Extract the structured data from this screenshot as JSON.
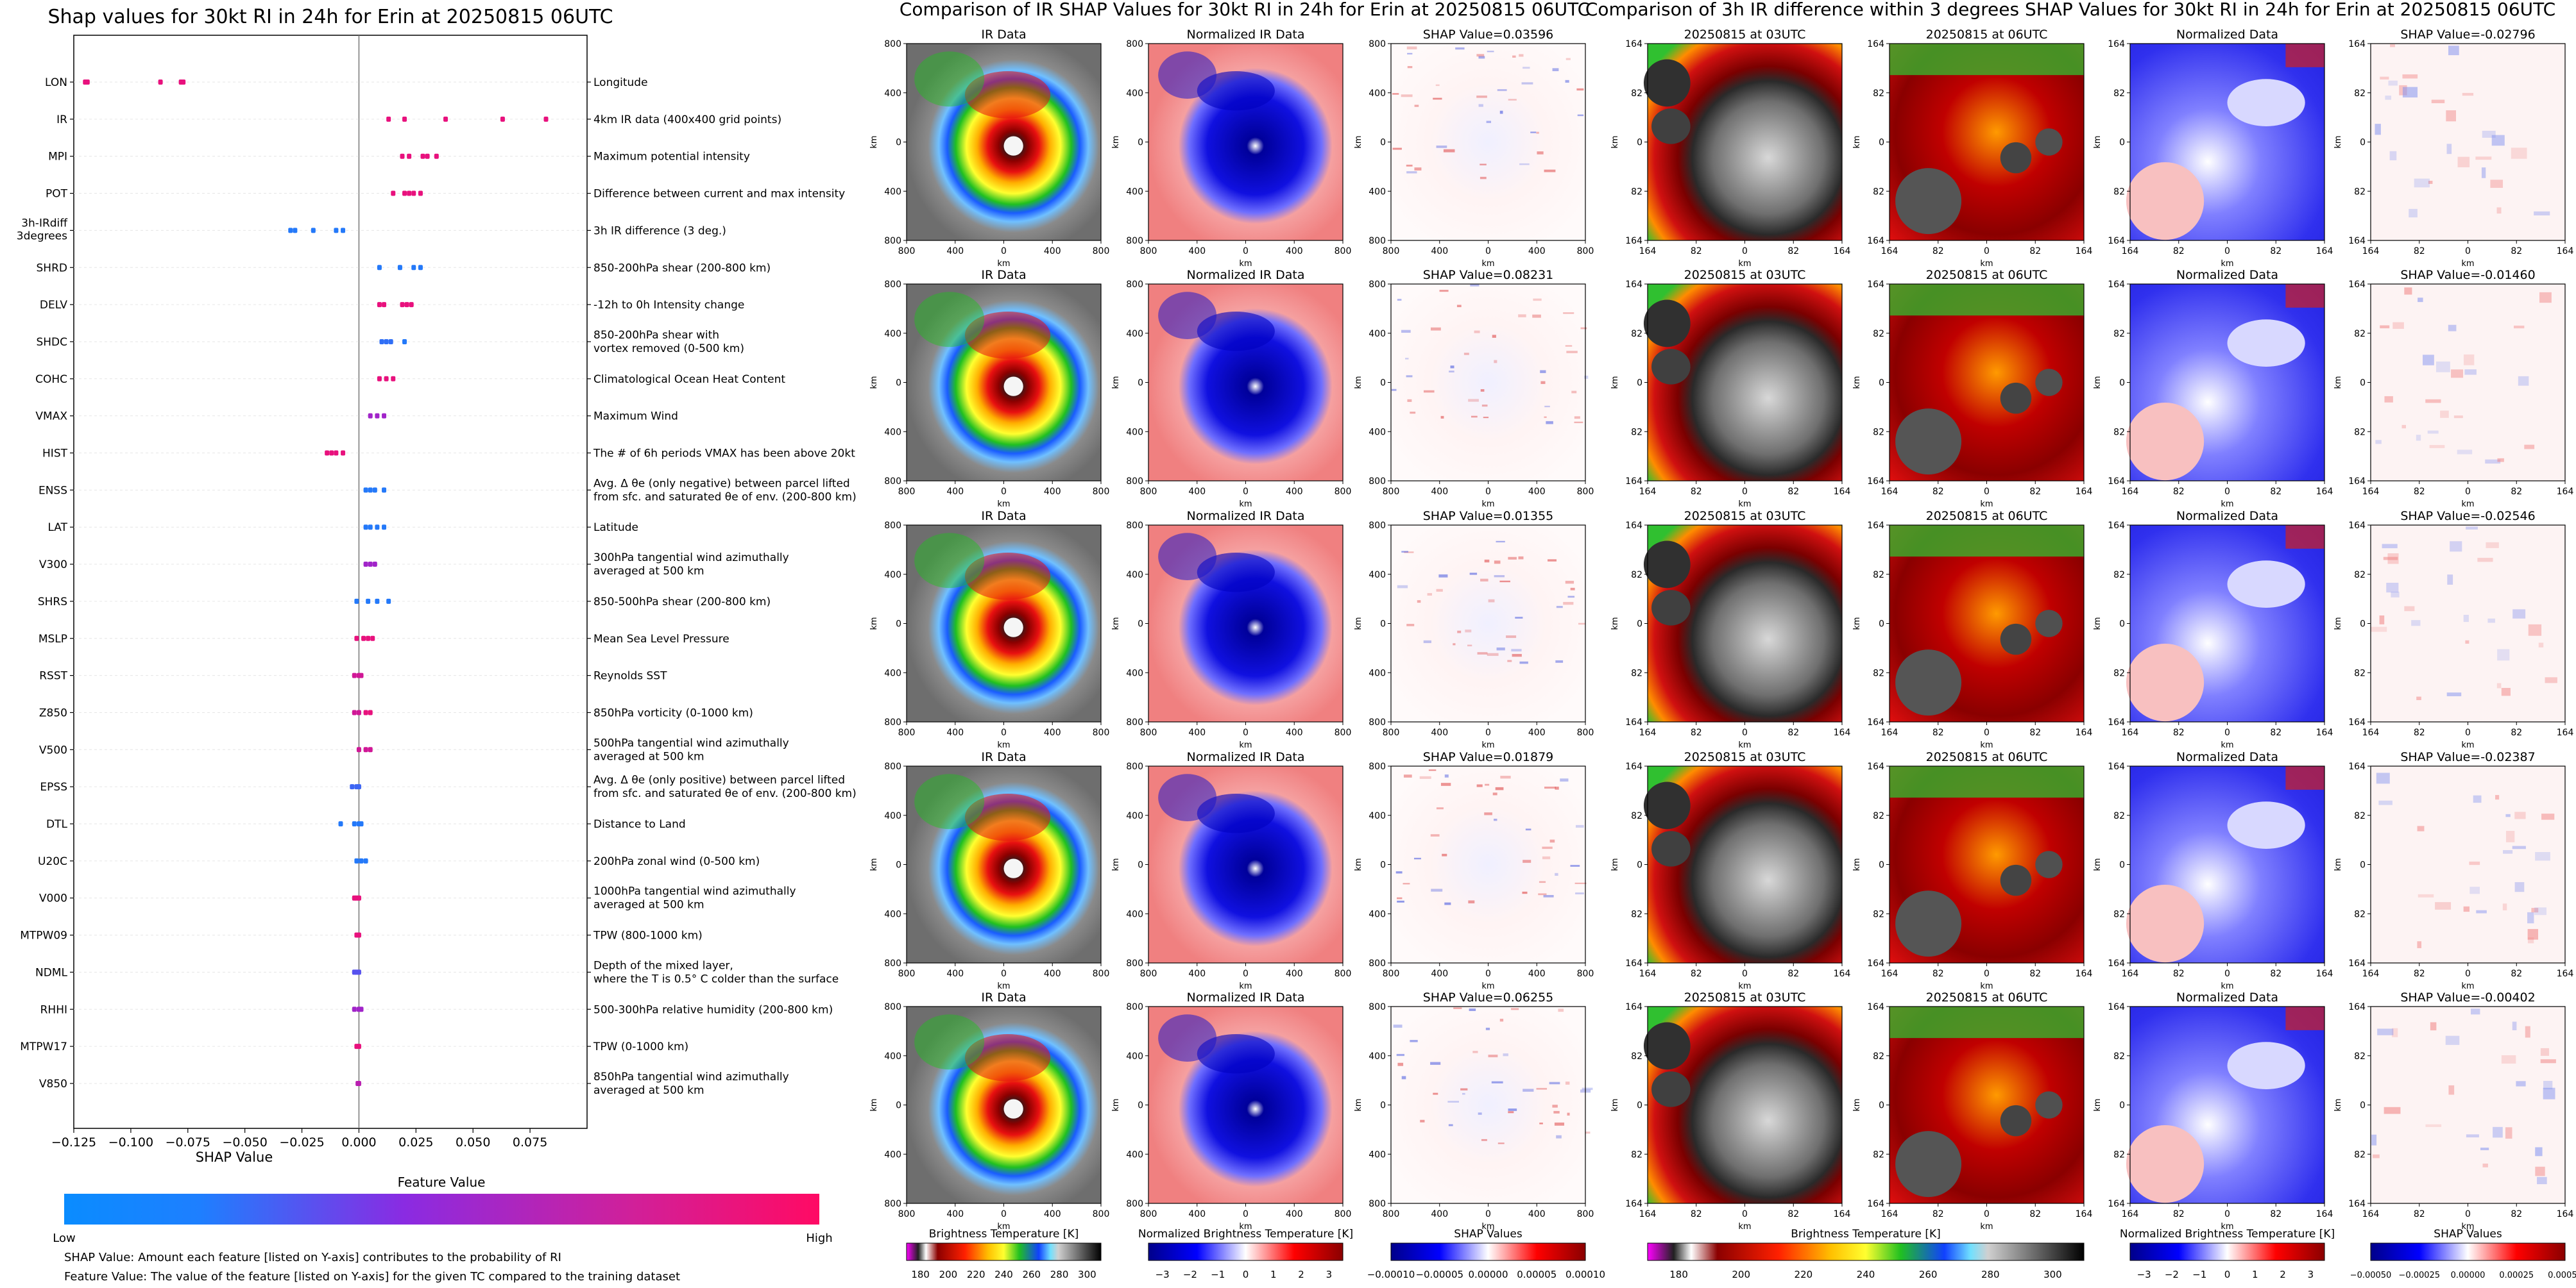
{
  "chart_data": [
    {
      "type": "scatter",
      "title": "Shap values for 30kt RI in 24h for Erin at 20250815 06UTC",
      "xlabel": "SHAP Value",
      "xlim": [
        -0.125,
        0.1
      ],
      "xticks": [
        "−0.125",
        "−0.100",
        "−0.075",
        "−0.050",
        "−0.025",
        "0.000",
        "0.025",
        "0.050",
        "0.075"
      ],
      "xtick_values": [
        -0.125,
        -0.1,
        -0.075,
        -0.05,
        -0.025,
        0,
        0.025,
        0.05,
        0.075
      ],
      "colorbar": {
        "title": "Feature Value",
        "low": "Low",
        "high": "High",
        "color_low": "#0a8cff",
        "color_mid": "#8a2be2",
        "color_high": "#ff0a64"
      },
      "notes": [
        "SHAP Value: Amount each feature [listed on Y-axis] contributes to the probability of RI",
        "Feature Value: The value of the feature [listed on Y-axis] for the given TC compared to the training dataset"
      ],
      "features": [
        {
          "name": "LON",
          "desc": [
            "Longitude"
          ],
          "points": [
            [
              -0.12,
              0.9
            ],
            [
              -0.119,
              0.9
            ],
            [
              -0.087,
              0.9
            ],
            [
              -0.078,
              0.9
            ],
            [
              -0.077,
              0.9
            ]
          ]
        },
        {
          "name": "IR",
          "desc": [
            "4km IR data (400x400 grid points)"
          ],
          "points": [
            [
              0.013,
              0.9
            ],
            [
              0.02,
              0.9
            ],
            [
              0.038,
              0.9
            ],
            [
              0.063,
              0.9
            ],
            [
              0.082,
              0.9
            ]
          ]
        },
        {
          "name": "MPI",
          "desc": [
            "Maximum potential intensity"
          ],
          "points": [
            [
              0.019,
              0.9
            ],
            [
              0.022,
              0.9
            ],
            [
              0.028,
              0.9
            ],
            [
              0.03,
              0.9
            ],
            [
              0.034,
              0.9
            ]
          ]
        },
        {
          "name": "POT",
          "desc": [
            "Difference between current and max intensity"
          ],
          "points": [
            [
              0.015,
              0.9
            ],
            [
              0.02,
              0.9
            ],
            [
              0.022,
              0.9
            ],
            [
              0.024,
              0.9
            ],
            [
              0.027,
              0.9
            ]
          ]
        },
        {
          "name": "3h-IRdiff 3degrees",
          "desc": [
            "3h IR difference (3 deg.)"
          ],
          "points": [
            [
              -0.03,
              0.1
            ],
            [
              -0.028,
              0.1
            ],
            [
              -0.02,
              0.1
            ],
            [
              -0.01,
              0.1
            ],
            [
              -0.007,
              0.1
            ]
          ]
        },
        {
          "name": "SHRD",
          "desc": [
            "850-200hPa shear (200-800 km)"
          ],
          "points": [
            [
              0.009,
              0.1
            ],
            [
              0.018,
              0.1
            ],
            [
              0.024,
              0.1
            ],
            [
              0.027,
              0.1
            ]
          ]
        },
        {
          "name": "DELV",
          "desc": [
            "-12h to 0h Intensity change"
          ],
          "points": [
            [
              0.009,
              0.9
            ],
            [
              0.011,
              0.9
            ],
            [
              0.019,
              0.9
            ],
            [
              0.021,
              0.9
            ],
            [
              0.023,
              0.9
            ]
          ]
        },
        {
          "name": "SHDC",
          "desc": [
            "850-200hPa shear with",
            "vortex removed (0-500 km)"
          ],
          "points": [
            [
              0.01,
              0.15
            ],
            [
              0.012,
              0.15
            ],
            [
              0.014,
              0.15
            ],
            [
              0.02,
              0.1
            ]
          ]
        },
        {
          "name": "COHC",
          "desc": [
            "Climatological Ocean Heat Content"
          ],
          "points": [
            [
              0.009,
              0.9
            ],
            [
              0.012,
              0.9
            ],
            [
              0.015,
              0.9
            ]
          ]
        },
        {
          "name": "VMAX",
          "desc": [
            "Maximum Wind"
          ],
          "points": [
            [
              0.005,
              0.6
            ],
            [
              0.008,
              0.6
            ],
            [
              0.011,
              0.6
            ]
          ]
        },
        {
          "name": "HIST",
          "desc": [
            "The # of 6h periods VMAX has been above 20kt"
          ],
          "points": [
            [
              -0.014,
              0.9
            ],
            [
              -0.012,
              0.9
            ],
            [
              -0.01,
              0.9
            ],
            [
              -0.007,
              0.9
            ]
          ]
        },
        {
          "name": "ENSS",
          "desc": [
            "Avg. Δ θe (only negative) between parcel lifted",
            "from sfc. and saturated θe of env. (200-800 km)"
          ],
          "points": [
            [
              0.003,
              0.1
            ],
            [
              0.005,
              0.1
            ],
            [
              0.007,
              0.1
            ],
            [
              0.011,
              0.1
            ]
          ]
        },
        {
          "name": "LAT",
          "desc": [
            "Latitude"
          ],
          "points": [
            [
              0.003,
              0.1
            ],
            [
              0.005,
              0.1
            ],
            [
              0.008,
              0.1
            ],
            [
              0.011,
              0.1
            ]
          ]
        },
        {
          "name": "V300",
          "desc": [
            "300hPa tangential wind azimuthally",
            "averaged at 500 km"
          ],
          "points": [
            [
              0.003,
              0.6
            ],
            [
              0.005,
              0.6
            ],
            [
              0.007,
              0.6
            ]
          ]
        },
        {
          "name": "SHRS",
          "desc": [
            "850-500hPa shear (200-800 km)"
          ],
          "points": [
            [
              -0.001,
              0.1
            ],
            [
              0.004,
              0.1
            ],
            [
              0.008,
              0.1
            ],
            [
              0.013,
              0.1
            ]
          ]
        },
        {
          "name": "MSLP",
          "desc": [
            "Mean Sea Level Pressure"
          ],
          "points": [
            [
              -0.001,
              0.9
            ],
            [
              0.002,
              0.9
            ],
            [
              0.004,
              0.9
            ],
            [
              0.006,
              0.9
            ]
          ]
        },
        {
          "name": "RSST",
          "desc": [
            "Reynolds SST"
          ],
          "points": [
            [
              -0.002,
              0.8
            ],
            [
              0.0,
              0.8
            ],
            [
              0.001,
              0.8
            ]
          ]
        },
        {
          "name": "Z850",
          "desc": [
            "850hPa vorticity (0-1000 km)"
          ],
          "points": [
            [
              -0.002,
              0.8
            ],
            [
              0.0,
              0.8
            ],
            [
              0.003,
              0.9
            ],
            [
              0.005,
              0.9
            ]
          ]
        },
        {
          "name": "V500",
          "desc": [
            "500hPa tangential wind azimuthally",
            "averaged at 500 km"
          ],
          "points": [
            [
              0.0,
              0.8
            ],
            [
              0.003,
              0.8
            ],
            [
              0.005,
              0.8
            ]
          ]
        },
        {
          "name": "EPSS",
          "desc": [
            "Avg. Δ θe (only positive) between parcel lifted",
            "from sfc. and saturated θe of env. (200-800 km)"
          ],
          "points": [
            [
              -0.003,
              0.2
            ],
            [
              -0.001,
              0.2
            ],
            [
              0.0,
              0.2
            ]
          ]
        },
        {
          "name": "DTL",
          "desc": [
            "Distance to Land"
          ],
          "points": [
            [
              -0.008,
              0.1
            ],
            [
              -0.002,
              0.1
            ],
            [
              0.0,
              0.1
            ],
            [
              0.001,
              0.1
            ]
          ]
        },
        {
          "name": "U20C",
          "desc": [
            "200hPa zonal wind (0-500 km)"
          ],
          "points": [
            [
              -0.001,
              0.1
            ],
            [
              0.001,
              0.1
            ],
            [
              0.003,
              0.1
            ]
          ]
        },
        {
          "name": "V000",
          "desc": [
            "1000hPa tangential wind azimuthally",
            "averaged at 500 km"
          ],
          "points": [
            [
              -0.002,
              0.9
            ],
            [
              -0.001,
              0.9
            ],
            [
              0.0,
              0.9
            ]
          ]
        },
        {
          "name": "MTPW09",
          "desc": [
            "TPW (800-1000 km)"
          ],
          "points": [
            [
              -0.001,
              0.9
            ],
            [
              0.0,
              0.9
            ]
          ]
        },
        {
          "name": "NDML",
          "desc": [
            "Depth of the mixed layer,",
            "where the T is 0.5° C colder than the surface"
          ],
          "points": [
            [
              -0.002,
              0.3
            ],
            [
              -0.001,
              0.3
            ],
            [
              0.0,
              0.3
            ]
          ]
        },
        {
          "name": "RHHI",
          "desc": [
            "500-300hPa relative humidity (200-800 km)"
          ],
          "points": [
            [
              -0.002,
              0.6
            ],
            [
              0.0,
              0.6
            ],
            [
              0.001,
              0.6
            ]
          ]
        },
        {
          "name": "MTPW17",
          "desc": [
            "TPW (0-1000 km)"
          ],
          "points": [
            [
              -0.001,
              0.9
            ],
            [
              0.0,
              0.9
            ]
          ]
        },
        {
          "name": "V850",
          "desc": [
            "850hPa tangential wind azimuthally",
            "averaged at 500 km"
          ],
          "points": [
            [
              -0.0005,
              0.7
            ],
            [
              0.0,
              0.7
            ]
          ]
        }
      ]
    },
    {
      "type": "heatmap",
      "title": "Comparison of IR SHAP Values for 30kt RI in 24h for Erin at 20250815 06UTC",
      "col_titles": [
        "IR Data",
        "Normalized IR Data"
      ],
      "shap_values": [
        "SHAP Value=0.03596",
        "SHAP Value=0.08231",
        "SHAP Value=0.01355",
        "SHAP Value=0.01879",
        "SHAP Value=0.06255"
      ],
      "ticks": [
        "800",
        "400",
        "0",
        "400",
        "800"
      ],
      "xlabel": "km",
      "ylabel": "km",
      "colorbars": [
        {
          "label": "Brightness Temperature [K]",
          "ticks": [
            "180",
            "200",
            "220",
            "240",
            "260",
            "280",
            "300"
          ],
          "kind": "ir"
        },
        {
          "label": "Normalized Brightness Temperature [K]",
          "ticks": [
            "−3",
            "−2",
            "−1",
            "0",
            "1",
            "2",
            "3"
          ],
          "kind": "bwr"
        },
        {
          "label": "SHAP Values",
          "ticks": [
            "−0.00010",
            "−0.00005",
            "0.00000",
            "0.00005",
            "0.00010"
          ],
          "kind": "shap"
        }
      ]
    },
    {
      "type": "heatmap",
      "title": "Comparison of 3h IR difference within 3 degrees SHAP Values for 30kt RI in 24h for Erin at 20250815 06UTC",
      "col_titles": [
        "20250815 at 03UTC",
        "20250815 at 06UTC",
        "Normalized Data"
      ],
      "shap_values": [
        "SHAP Value=-0.02796",
        "SHAP Value=-0.01460",
        "SHAP Value=-0.02546",
        "SHAP Value=-0.02387",
        "SHAP Value=-0.00402"
      ],
      "ticks": [
        "164",
        "82",
        "0",
        "82",
        "164"
      ],
      "xlabel": "km",
      "ylabel": "km",
      "colorbars": [
        {
          "label": "Brightness Temperature [K]",
          "ticks": [
            "180",
            "200",
            "220",
            "240",
            "260",
            "280",
            "300"
          ],
          "kind": "ir"
        },
        {
          "label": "Normalized Brightness Temperature [K]",
          "ticks": [
            "−3",
            "−2",
            "−1",
            "0",
            "1",
            "2",
            "3"
          ],
          "kind": "bwr"
        },
        {
          "label": "SHAP Values",
          "ticks": [
            "−0.00050",
            "−0.00025",
            "0.00000",
            "0.00025",
            "0.00050"
          ],
          "kind": "shap"
        }
      ]
    }
  ]
}
